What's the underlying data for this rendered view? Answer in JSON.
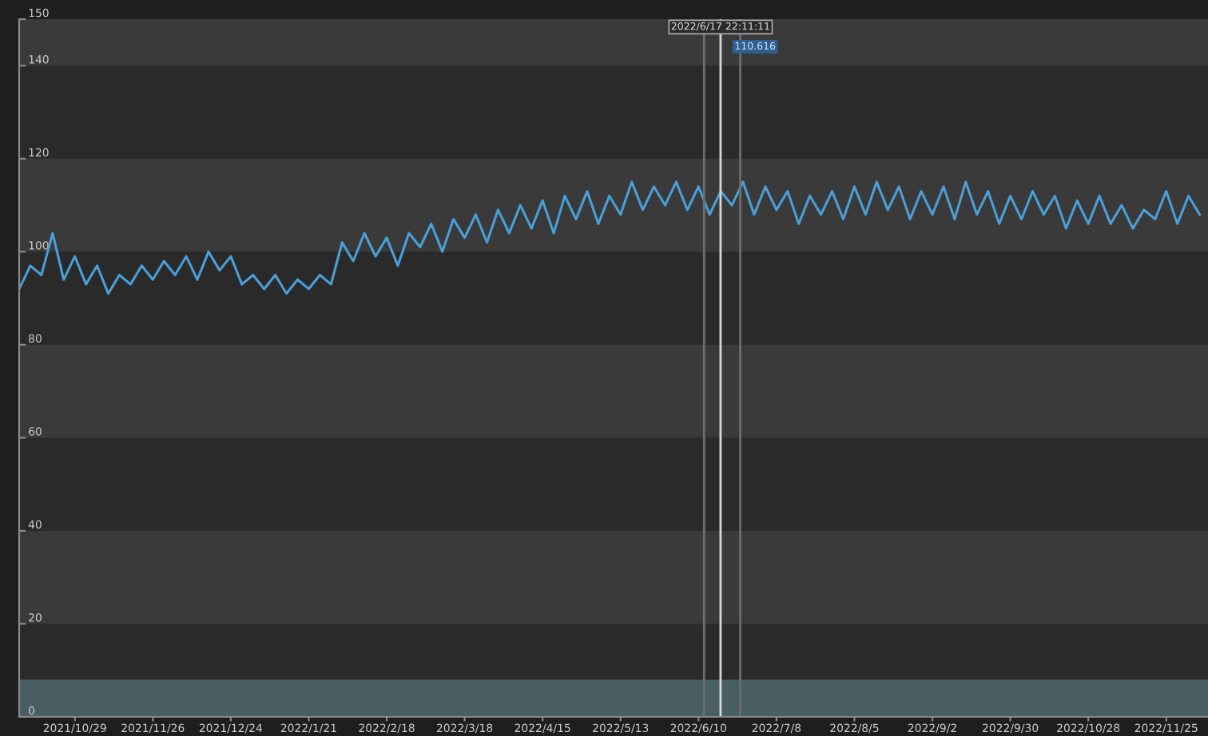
{
  "chart_data": {
    "type": "line",
    "x": [
      "2021-10-09",
      "2021-10-13",
      "2021-10-17",
      "2021-10-21",
      "2021-10-25",
      "2021-10-29",
      "2021-11-02",
      "2021-11-06",
      "2021-11-10",
      "2021-11-14",
      "2021-11-18",
      "2021-11-22",
      "2021-11-26",
      "2021-11-30",
      "2021-12-04",
      "2021-12-08",
      "2021-12-12",
      "2021-12-16",
      "2021-12-20",
      "2021-12-24",
      "2021-12-28",
      "2022-01-01",
      "2022-01-05",
      "2022-01-09",
      "2022-01-13",
      "2022-01-17",
      "2022-01-21",
      "2022-01-25",
      "2022-01-29",
      "2022-02-02",
      "2022-02-06",
      "2022-02-10",
      "2022-02-14",
      "2022-02-18",
      "2022-02-22",
      "2022-02-26",
      "2022-03-02",
      "2022-03-06",
      "2022-03-10",
      "2022-03-14",
      "2022-03-18",
      "2022-03-22",
      "2022-03-26",
      "2022-03-30",
      "2022-04-03",
      "2022-04-07",
      "2022-04-11",
      "2022-04-15",
      "2022-04-19",
      "2022-04-23",
      "2022-04-27",
      "2022-05-01",
      "2022-05-05",
      "2022-05-09",
      "2022-05-13",
      "2022-05-17",
      "2022-05-21",
      "2022-05-25",
      "2022-05-29",
      "2022-06-02",
      "2022-06-06",
      "2022-06-10",
      "2022-06-14",
      "2022-06-18",
      "2022-06-22",
      "2022-06-26",
      "2022-06-30",
      "2022-07-04",
      "2022-07-08",
      "2022-07-12",
      "2022-07-16",
      "2022-07-20",
      "2022-07-24",
      "2022-07-28",
      "2022-08-01",
      "2022-08-05",
      "2022-08-09",
      "2022-08-13",
      "2022-08-17",
      "2022-08-21",
      "2022-08-25",
      "2022-08-29",
      "2022-09-02",
      "2022-09-06",
      "2022-09-10",
      "2022-09-14",
      "2022-09-18",
      "2022-09-22",
      "2022-09-26",
      "2022-09-30",
      "2022-10-04",
      "2022-10-08",
      "2022-10-12",
      "2022-10-16",
      "2022-10-20",
      "2022-10-24",
      "2022-10-28",
      "2022-11-01",
      "2022-11-05",
      "2022-11-09",
      "2022-11-13",
      "2022-11-17",
      "2022-11-21",
      "2022-11-25",
      "2022-11-29",
      "2022-12-03",
      "2022-12-07"
    ],
    "series": [
      {
        "color": "#4a9fd8",
        "values": [
          92,
          97,
          95,
          104,
          94,
          99,
          93,
          97,
          91,
          95,
          93,
          97,
          94,
          98,
          95,
          99,
          94,
          100,
          96,
          99,
          93,
          95,
          92,
          95,
          91,
          94,
          92,
          95,
          93,
          102,
          98,
          104,
          99,
          103,
          97,
          104,
          101,
          106,
          100,
          107,
          103,
          108,
          102,
          109,
          104,
          110,
          105,
          111,
          104,
          112,
          107,
          113,
          106,
          112,
          108,
          115,
          109,
          114,
          110,
          115,
          109,
          114,
          108,
          113,
          110,
          115,
          108,
          114,
          109,
          113,
          106,
          112,
          108,
          113,
          107,
          114,
          108,
          115,
          109,
          114,
          107,
          113,
          108,
          114,
          107,
          115,
          108,
          113,
          106,
          112,
          107,
          113,
          108,
          112,
          105,
          111,
          106,
          112,
          106,
          110,
          105,
          109,
          107,
          113,
          106,
          112,
          108
        ]
      }
    ],
    "xlim": [
      "2021-10-09",
      "2022-12-10"
    ],
    "xticks": [
      {
        "value": "2021-10-29",
        "label": "2021/10/29"
      },
      {
        "value": "2021-11-26",
        "label": "2021/11/26"
      },
      {
        "value": "2021-12-24",
        "label": "2021/12/24"
      },
      {
        "value": "2022-01-21",
        "label": "2022/1/21"
      },
      {
        "value": "2022-02-18",
        "label": "2022/2/18"
      },
      {
        "value": "2022-03-18",
        "label": "2022/3/18"
      },
      {
        "value": "2022-04-15",
        "label": "2022/4/15"
      },
      {
        "value": "2022-05-13",
        "label": "2022/5/13"
      },
      {
        "value": "2022-06-10",
        "label": "2022/6/10"
      },
      {
        "value": "2022-07-08",
        "label": "2022/7/8"
      },
      {
        "value": "2022-08-05",
        "label": "2022/8/5"
      },
      {
        "value": "2022-09-02",
        "label": "2022/9/2"
      },
      {
        "value": "2022-09-30",
        "label": "2022/9/30"
      },
      {
        "value": "2022-10-28",
        "label": "2022/10/28"
      },
      {
        "value": "2022-11-25",
        "label": "2022/11/25"
      }
    ],
    "ylim": [
      0,
      150
    ],
    "yticks": [
      0,
      20,
      40,
      60,
      80,
      100,
      120,
      140,
      150
    ],
    "bands": [
      {
        "axis": "y",
        "from": 20,
        "to": 40,
        "color": "#3a3a3a"
      },
      {
        "axis": "y",
        "from": 60,
        "to": 80,
        "color": "#3a3a3a"
      },
      {
        "axis": "y",
        "from": 100,
        "to": 120,
        "color": "#3a3a3a"
      },
      {
        "axis": "y",
        "from": 140,
        "to": 150,
        "color": "#3a3a3a"
      },
      {
        "axis": "y",
        "from": 0,
        "to": 8,
        "color": "#4a5f63"
      }
    ],
    "ref_lines": [
      {
        "axis": "x",
        "value": "2022-06-12",
        "color": "#6e6e6e"
      },
      {
        "axis": "x",
        "value": "2022-06-25",
        "color": "#6e6e6e"
      },
      {
        "axis": "x",
        "value": "2022-06-17T22:11",
        "label": "2022/6/17 22:11:11",
        "color": "#d8d8d8"
      }
    ],
    "annotations": [
      "110.616"
    ]
  }
}
